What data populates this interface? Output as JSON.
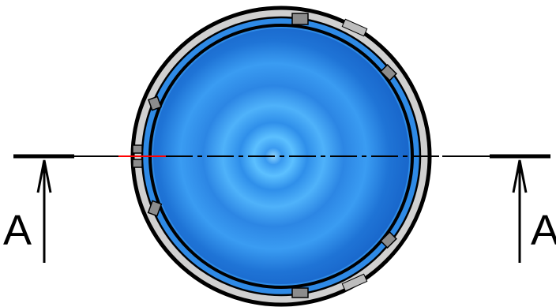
{
  "section_marker": {
    "left_label": "A",
    "right_label": "A"
  },
  "colors": {
    "background": "#ffffff",
    "outline": "#000000",
    "outer_rim": "#d0d0d0",
    "rim_blue": "#2e8ae6",
    "face_blue_light": "#5cc0ff",
    "face_blue_mid": "#2f8fea",
    "face_blue_dark": "#1763c8",
    "tab_gray": "#8c8c8c",
    "section_highlight": "#ff0000"
  }
}
